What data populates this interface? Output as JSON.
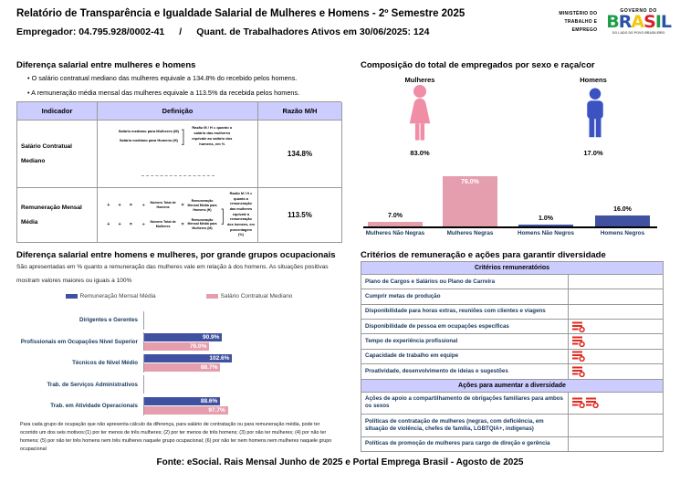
{
  "accent_colors": {
    "pink_bar": "#e59eae",
    "pink_icon": "#f08ea6",
    "pink_light": "#f2a8bb",
    "blue_bar": "#3f51a0",
    "blue_icon": "#3b52c3",
    "red_figure": "#e02424",
    "red_icon": "#e02b20",
    "lavender_header": "#ccccff",
    "navy_label": "#17375e"
  },
  "header": {
    "title": "Relatório de Transparência e Igualdade Salarial de Mulheres e Homens - 2º Semestre 2025",
    "employer_line": "Empregador: 04.795.928/0002-41",
    "separator": "/",
    "active_workers_line": "Quant. de Trabalhadores Ativos em 30/06/2025: 124",
    "ministry": "MINISTÉRIO DO TRABALHO E EMPREGO",
    "gov_top": "GOVERNO DO",
    "gov_tagline": "DO LADO DO POVO BRASILEIRO",
    "brasil_letters": [
      {
        "ch": "B",
        "color": "#1f9e48"
      },
      {
        "ch": "R",
        "color": "#2b53a5"
      },
      {
        "ch": "A",
        "color": "#f6c60f"
      },
      {
        "ch": "S",
        "color": "#d6222a"
      },
      {
        "ch": "I",
        "color": "#1f9e48"
      },
      {
        "ch": "L",
        "color": "#2b53a5"
      }
    ]
  },
  "salary_gap": {
    "title": "Diferença salarial entre mulheres e homens",
    "bullets": [
      "O salário contratual mediano das mulheres equivale a 134.8% do recebido pelos homens.",
      "A remuneração média mensal das mulheres equivale a 113.5% da recebida pelos homens."
    ],
    "table": {
      "col_headers": [
        "Indicador",
        "Definição",
        "Razão M/H"
      ],
      "rows": [
        {
          "indicator": "Salário Contratual Mediano",
          "def_label_m": "Salário mediano para Mulheres (M)",
          "def_label_h": "Salário mediano para Homens (H)",
          "def_note": "Razão M / H = quanto o salário das mulheres equivale ao salário dos homens, em %",
          "ratio": "134.8%"
        },
        {
          "indicator": "Remuneração Mensal Média",
          "eq1_divisor": "Número Total de Homens",
          "eq1_result": "Remuneração Mensal Média para Homens (H)",
          "eq2_divisor": "Número Total de Mulheres",
          "eq2_result": "Remuneração Mensal Média para Mulheres (M)",
          "def_note": "Razão M / H = quanto a remuneração das mulheres equivale à remuneração dos homens, em porcentagem (%)",
          "ratio": "113.5%"
        }
      ]
    }
  },
  "composition": {
    "title": "Composição do total de empregados por sexo e raça/cor"
  },
  "occupational": {
    "title": "Diferença salarial entre homens e mulheres, por grande grupos ocupacionais",
    "description": "São apresentadas em % quanto a remuneração das mulheres vale em relação à dos homens. As situações positivas mostram valores maiores ou iguais a 100%",
    "legend": [
      {
        "label": "Remuneração Mensal Média",
        "color": "#3f51a0"
      },
      {
        "label": "Salário Contratual Mediano",
        "color": "#e59eae"
      }
    ],
    "footnote": "Para cada grupo de ocupação que não apresenta cálculo da diferença, para salário de contratação ou para remuneração média, pode ter ocorrido um dos seis motivos:(1) por ter menos de três mulheres; (2) por ter menos de três homens; (3) por não ter mulheres; (4) por não ter homens; (5) por não ter três homens nem três mulheres naquele grupo ocupacional; (6) por não ter nem homens nem mulheres naquele grupo ocupacional"
  },
  "criteria": {
    "title": "Critérios de remuneração e ações para garantir diversidade",
    "sections": [
      {
        "header": "Critérios remuneratórios",
        "rows": [
          {
            "label": "Plano de Cargos e Salários ou Plano de Carreira",
            "marks": 0
          },
          {
            "label": "Cumprir metas de produção",
            "marks": 0
          },
          {
            "label": "Disponibilidade para horas extras, reuniões com clientes e viagens",
            "marks": 0
          },
          {
            "label": "Disponibilidade de pessoa em ocupações específicas",
            "marks": 1
          },
          {
            "label": "Tempo de experiência profissional",
            "marks": 1
          },
          {
            "label": "Capacidade de trabalho em equipe",
            "marks": 1
          },
          {
            "label": "Proatividade, desenvolvimento de ideias e sugestões",
            "marks": 1
          }
        ]
      },
      {
        "header": "Ações para aumentar a diversidade",
        "rows": [
          {
            "label": "Ações de apoio a compartilhamento de obrigações familiares para ambos os sexos",
            "marks": 2
          },
          {
            "label": "Políticas de contratação de mulheres (negras, com deficiência, em situação de violência, chefes de família, LGBTQIA+, indígenas)",
            "marks": 0
          },
          {
            "label": "Políticas de promoção de mulheres para cargo de direção e gerência",
            "marks": 0
          }
        ]
      }
    ]
  },
  "footer": {
    "source": "Fonte: eSocial. Rais Mensal Junho de 2025 e Portal Emprega Brasil - Agosto de 2025"
  },
  "chart_data": [
    {
      "id": "composition_by_sex",
      "type": "pictogram",
      "title": "Composição do total de empregados por sexo e raça/cor",
      "categories": [
        "Mulheres",
        "Homens"
      ],
      "values": [
        83.0,
        17.0
      ],
      "value_labels": [
        "83.0%",
        "17.0%"
      ],
      "colors": [
        "#f08ea6",
        "#3b52c3"
      ]
    },
    {
      "id": "composition_by_race",
      "type": "bar",
      "categories": [
        "Mulheres Não Negras",
        "Mulheres Negras",
        "Homens Não Negros",
        "Homens Negros"
      ],
      "values": [
        7.0,
        76.0,
        1.0,
        16.0
      ],
      "value_labels": [
        "7.0%",
        "76.0%",
        "1.0%",
        "16.0%"
      ],
      "colors": [
        "#e59eae",
        "#e59eae",
        "#3f51a0",
        "#3f51a0"
      ],
      "ylim": [
        0,
        100
      ],
      "grid": false,
      "legend_position": "none"
    },
    {
      "id": "salary_ratio_by_occupation",
      "type": "bar",
      "orientation": "horizontal",
      "categories": [
        "Dirigentes e Gerentes",
        "Profissionais em Ocupações Nível Superior",
        "Técnicos de Nível Médio",
        "Trab. de Serviços Administrativos",
        "Trab. em Atividade Operacionais"
      ],
      "series": [
        {
          "name": "Remuneração Mensal Média",
          "color": "#3f51a0",
          "values": [
            null,
            90.9,
            102.6,
            null,
            88.6
          ]
        },
        {
          "name": "Salário Contratual Mediano",
          "color": "#e59eae",
          "values": [
            null,
            76.0,
            88.7,
            null,
            97.7
          ]
        }
      ],
      "value_suffix": "%",
      "xlim": [
        0,
        110
      ],
      "grid": false,
      "legend_position": "top-center"
    }
  ]
}
